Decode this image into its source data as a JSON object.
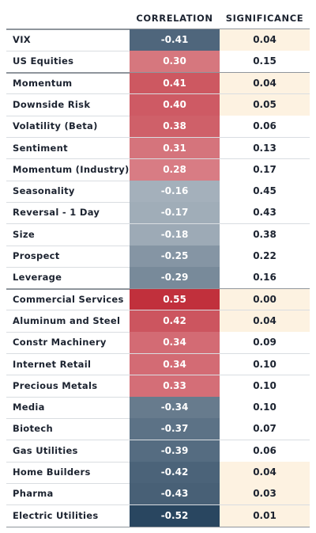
{
  "chart_data": {
    "type": "table",
    "columns": [
      "CORRELATION",
      "SIGNIFICANCE"
    ],
    "rows": [
      {
        "label": "VIX",
        "correlation": "-0.41",
        "significance": "0.04",
        "highlight": true
      },
      {
        "label": "US Equities",
        "correlation": "0.30",
        "significance": "0.15",
        "highlight": false
      },
      {
        "label": "Momentum",
        "correlation": "0.41",
        "significance": "0.04",
        "highlight": true
      },
      {
        "label": "Downside Risk",
        "correlation": "0.40",
        "significance": "0.05",
        "highlight": true
      },
      {
        "label": "Volatility (Beta)",
        "correlation": "0.38",
        "significance": "0.06",
        "highlight": false
      },
      {
        "label": "Sentiment",
        "correlation": "0.31",
        "significance": "0.13",
        "highlight": false
      },
      {
        "label": "Momentum (Industry)",
        "correlation": "0.28",
        "significance": "0.17",
        "highlight": false
      },
      {
        "label": "Seasonality",
        "correlation": "-0.16",
        "significance": "0.45",
        "highlight": false
      },
      {
        "label": "Reversal - 1 Day",
        "correlation": "-0.17",
        "significance": "0.43",
        "highlight": false
      },
      {
        "label": "Size",
        "correlation": "-0.18",
        "significance": "0.38",
        "highlight": false
      },
      {
        "label": "Prospect",
        "correlation": "-0.25",
        "significance": "0.22",
        "highlight": false
      },
      {
        "label": "Leverage",
        "correlation": "-0.29",
        "significance": "0.16",
        "highlight": false
      },
      {
        "label": "Commercial Services",
        "correlation": "0.55",
        "significance": "0.00",
        "highlight": true
      },
      {
        "label": "Aluminum and Steel",
        "correlation": "0.42",
        "significance": "0.04",
        "highlight": true
      },
      {
        "label": "Constr Machinery",
        "correlation": "0.34",
        "significance": "0.09",
        "highlight": false
      },
      {
        "label": "Internet Retail",
        "correlation": "0.34",
        "significance": "0.10",
        "highlight": false
      },
      {
        "label": "Precious Metals",
        "correlation": "0.33",
        "significance": "0.10",
        "highlight": false
      },
      {
        "label": "Media",
        "correlation": "-0.34",
        "significance": "0.10",
        "highlight": false
      },
      {
        "label": "Biotech",
        "correlation": "-0.37",
        "significance": "0.07",
        "highlight": false
      },
      {
        "label": "Gas Utilities",
        "correlation": "-0.39",
        "significance": "0.06",
        "highlight": false
      },
      {
        "label": "Home Builders",
        "correlation": "-0.42",
        "significance": "0.04",
        "highlight": true
      },
      {
        "label": "Pharma",
        "correlation": "-0.43",
        "significance": "0.03",
        "highlight": true
      },
      {
        "label": "Electric Utilities",
        "correlation": "-0.52",
        "significance": "0.01",
        "highlight": true
      }
    ],
    "group_breaks_after": [
      2,
      12
    ],
    "colors": {
      "positive": "#c1303c",
      "negative": "#1f3d58",
      "neutral": "#ffffff",
      "significance_highlight": "#fdf2e1",
      "text_dark": "#1c2330",
      "text_light": "#ffffff"
    }
  }
}
